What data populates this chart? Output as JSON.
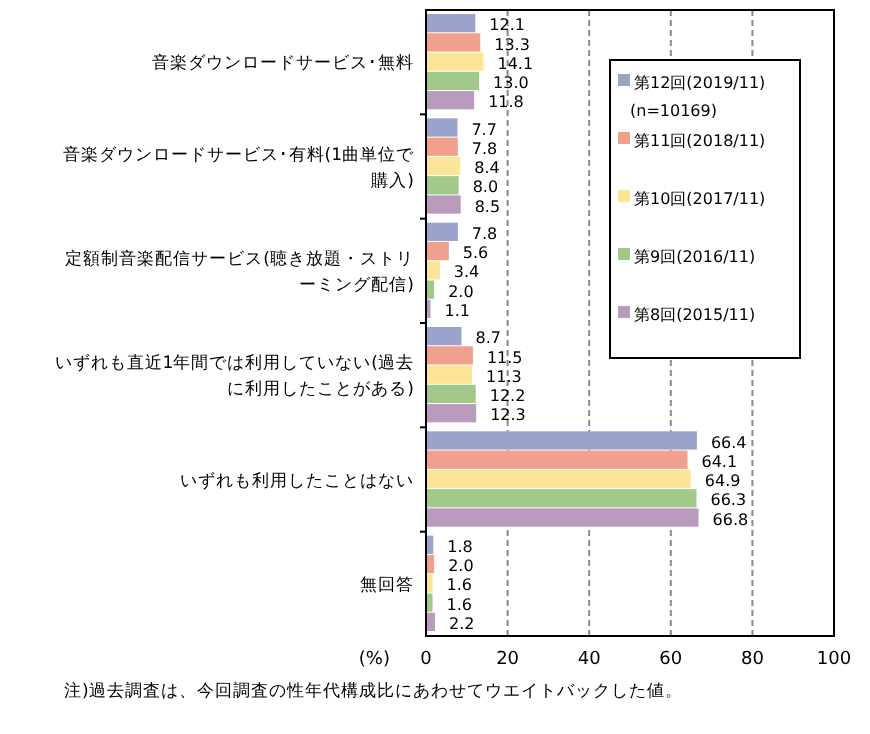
{
  "chart_data": {
    "type": "bar",
    "orientation": "horizontal",
    "categories": [
      "音楽ダウンロードサービス･無料",
      "音楽ダウンロードサービス･有料(1曲単位で購入)",
      "定額制音楽配信サービス(聴き放題・ストリーミング配信)",
      "いずれも直近1年間では利用していない(過去に利用したことがある)",
      "いずれも利用したことはない",
      "無回答"
    ],
    "series": [
      {
        "name": "第12回(2019/11)\n(n=10169)",
        "color": "#99a3cc",
        "values": [
          12.1,
          7.7,
          7.8,
          8.7,
          66.4,
          1.8
        ],
        "value_labels": [
          "12.1",
          "7.7",
          "7.8",
          "8.7",
          "66.4",
          "1.8"
        ]
      },
      {
        "name": "第11回(2018/11)",
        "color": "#f0a08c",
        "values": [
          13.3,
          7.8,
          5.6,
          11.5,
          64.1,
          2.0
        ],
        "value_labels": [
          "13.3",
          "7.8",
          "5.6",
          "11.5",
          "64.1",
          "2.0"
        ]
      },
      {
        "name": "第10回(2017/11)",
        "color": "#fde597",
        "values": [
          14.1,
          8.4,
          3.4,
          11.3,
          64.9,
          1.6
        ],
        "value_labels": [
          "14.1",
          "8.4",
          "3.4",
          "11.3",
          "64.9",
          "1.6"
        ]
      },
      {
        "name": "第9回(2016/11)",
        "color": "#a1c98a",
        "values": [
          13.0,
          8.0,
          2.0,
          12.2,
          66.3,
          1.6
        ],
        "value_labels": [
          "13.0",
          "8.0",
          "2.0",
          "12.2",
          "66.3",
          "1.6"
        ]
      },
      {
        "name": "第8回(2015/11)",
        "color": "#b99bbe",
        "values": [
          11.8,
          8.5,
          1.1,
          12.3,
          66.8,
          2.2
        ],
        "value_labels": [
          "11.8",
          "8.5",
          "1.1",
          "12.3",
          "66.8",
          "2.2"
        ]
      }
    ],
    "xlim": [
      0,
      100
    ],
    "xticks": [
      0,
      20,
      40,
      60,
      80,
      100
    ],
    "xlabel": "(%)",
    "grid": "x",
    "legend": "right",
    "annotations": [
      "注)過去調査は、今回調査の性年代構成比にあわせてウエイトバックした値。"
    ]
  }
}
